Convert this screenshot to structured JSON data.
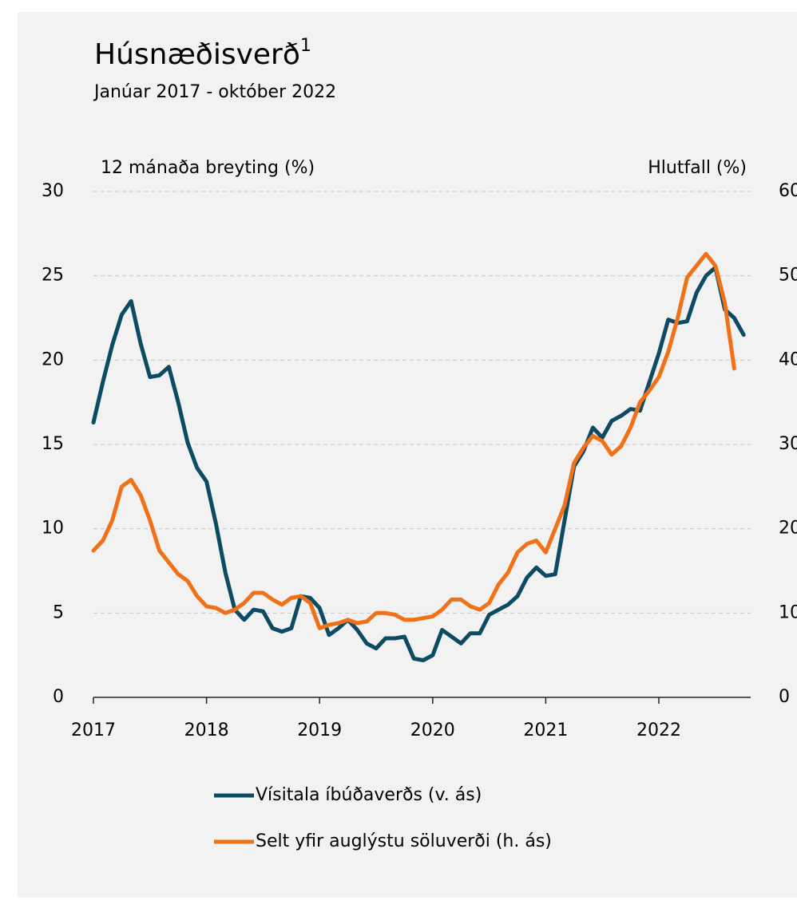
{
  "chart_data": {
    "type": "line",
    "title": "Húsnæðisverð",
    "title_footnote": "1",
    "subtitle": "Janúar 2017 - október 2022",
    "y_label": "12 mánaða breyting (%)",
    "y2_label": "Hlutfall (%)",
    "categories": [
      "2017",
      null,
      null,
      null,
      null,
      null,
      null,
      null,
      null,
      null,
      null,
      null,
      "2018",
      null,
      null,
      null,
      null,
      null,
      null,
      null,
      null,
      null,
      null,
      null,
      "2019",
      null,
      null,
      null,
      null,
      null,
      null,
      null,
      null,
      null,
      null,
      null,
      "2020",
      null,
      null,
      null,
      null,
      null,
      null,
      null,
      null,
      null,
      null,
      null,
      "2021",
      null,
      null,
      null,
      null,
      null,
      null,
      null,
      null,
      null,
      null,
      null,
      "2022",
      null,
      null,
      null,
      null,
      null,
      null,
      null,
      null,
      null
    ],
    "ylim": [
      0,
      30
    ],
    "yticks": [
      0,
      5,
      10,
      15,
      20,
      25,
      30
    ],
    "y2lim": [
      0,
      60
    ],
    "y2ticks": [
      0,
      10,
      20,
      30,
      40,
      50,
      60
    ],
    "grid": true,
    "series": [
      {
        "name": "Vísitala íbúðaverðs (v. ás)",
        "color": "#0d4a63",
        "values": [
          16.3,
          18.7,
          20.9,
          22.7,
          23.5,
          21.0,
          19.0,
          19.1,
          19.6,
          17.5,
          15.1,
          13.6,
          12.8,
          10.3,
          7.4,
          5.2,
          4.6,
          5.2,
          5.1,
          4.1,
          3.9,
          4.1,
          6.0,
          5.9,
          5.3,
          3.7,
          4.1,
          4.6,
          4.0,
          3.2,
          2.9,
          3.5,
          3.5,
          3.6,
          2.3,
          2.2,
          2.5,
          4.0,
          3.6,
          3.2,
          3.8,
          3.8,
          4.9,
          5.2,
          5.5,
          6.0,
          7.1,
          7.7,
          7.2,
          7.3,
          10.5,
          13.7,
          14.6,
          16.0,
          15.4,
          16.4,
          16.7,
          17.1,
          17.0,
          18.7,
          20.4,
          22.4,
          22.2,
          22.3,
          24.0,
          25.0,
          25.5,
          23.0,
          22.5,
          21.5
        ]
      },
      {
        "name": "Selt yfir auglýstu söluverði (h. ás)",
        "color": "#f07118",
        "axis": "y2",
        "values": [
          17.4,
          18.6,
          21,
          25,
          25.8,
          24,
          21,
          17.4,
          16,
          14.6,
          13.8,
          12,
          10.8,
          10.6,
          10,
          10.4,
          11.2,
          12.4,
          12.4,
          11.6,
          11,
          11.8,
          12,
          11.2,
          8.2,
          8.6,
          8.8,
          9.2,
          8.8,
          9,
          10,
          10,
          9.8,
          9.2,
          9.2,
          9.4,
          9.6,
          10.4,
          11.6,
          11.6,
          10.8,
          10.4,
          11.2,
          13.4,
          14.8,
          17.2,
          18.2,
          18.6,
          17.2,
          20,
          22.8,
          27.8,
          29.6,
          31,
          30.4,
          28.8,
          29.8,
          32,
          35,
          36.4,
          38,
          41,
          45,
          49.8,
          51.2,
          52.6,
          51.2,
          46.8,
          39,
          null
        ]
      }
    ]
  }
}
